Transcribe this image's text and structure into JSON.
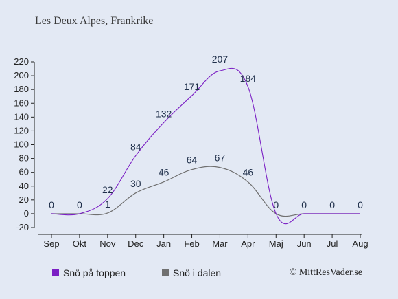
{
  "chart_data": {
    "type": "line",
    "title": "Les Deux Alpes, Frankrike",
    "xlabel": "",
    "ylabel": "",
    "categories": [
      "Sep",
      "Okt",
      "Nov",
      "Dec",
      "Jan",
      "Feb",
      "Mar",
      "Apr",
      "Maj",
      "Jun",
      "Jul",
      "Aug"
    ],
    "ylim": [
      -20,
      220
    ],
    "yticks": [
      -20,
      0,
      20,
      40,
      60,
      80,
      100,
      120,
      140,
      160,
      180,
      200,
      220
    ],
    "grid": false,
    "legend_position": "bottom-left",
    "series": [
      {
        "name": "Snö på toppen",
        "color": "#7b1fc4",
        "values": [
          0,
          0,
          22,
          84,
          132,
          171,
          207,
          184,
          0,
          0,
          0,
          0
        ],
        "labels": [
          "0",
          "0",
          "22",
          "84",
          "132",
          "171",
          "207",
          "184",
          "0",
          "0",
          "0",
          "0"
        ]
      },
      {
        "name": "Snö i dalen",
        "color": "#707070",
        "values": [
          0,
          0,
          1,
          30,
          46,
          64,
          67,
          46,
          0,
          0,
          0,
          0
        ],
        "labels": [
          "",
          "",
          "1",
          "30",
          "46",
          "64",
          "67",
          "46",
          "",
          "",
          "",
          ""
        ]
      }
    ]
  },
  "copyright": "© MittResVader.se"
}
